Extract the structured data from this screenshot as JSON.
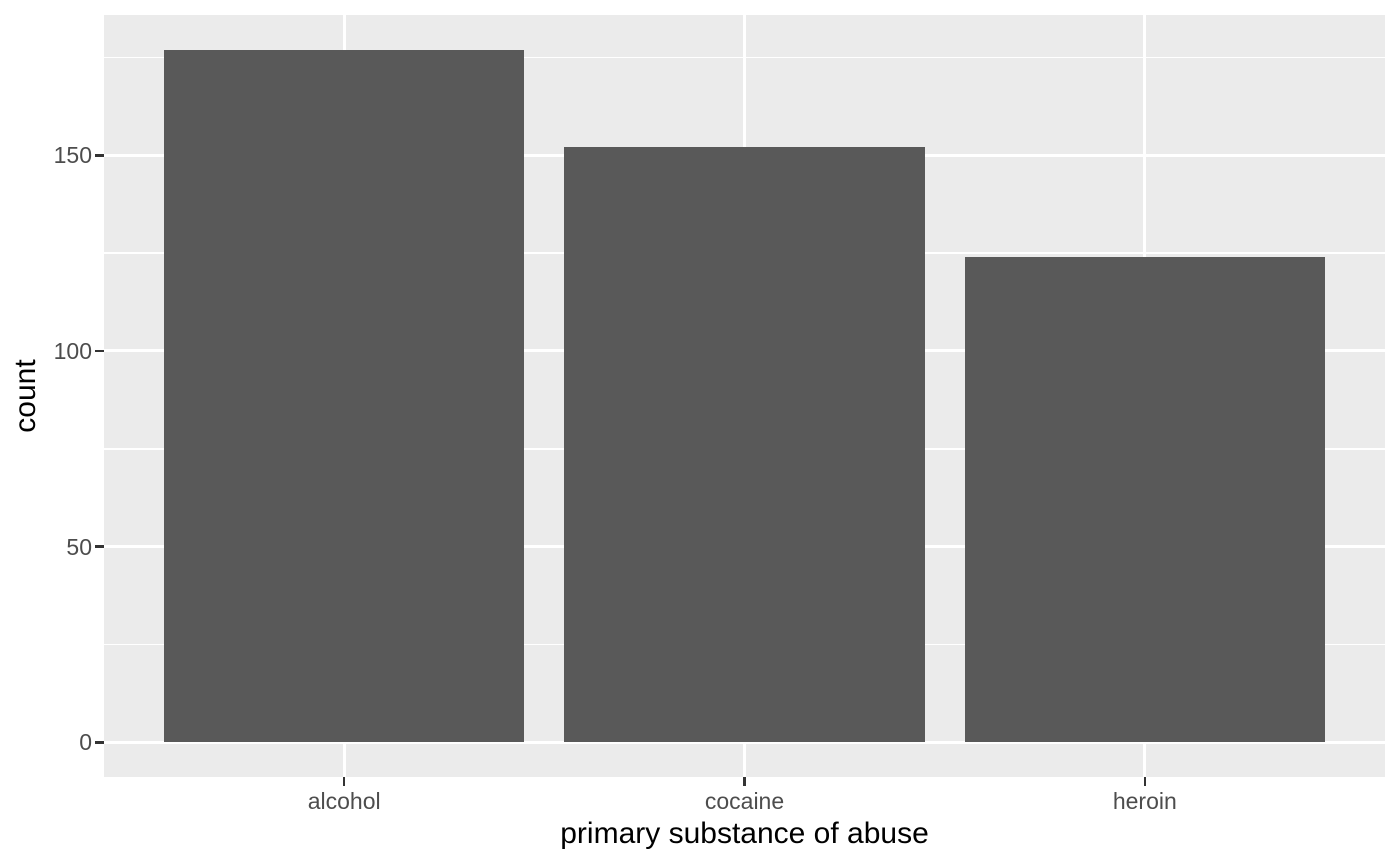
{
  "chart_data": {
    "type": "bar",
    "title": "",
    "categories": [
      "alcohol",
      "cocaine",
      "heroin"
    ],
    "values": [
      177,
      152,
      124
    ],
    "xlabel": "primary substance of abuse",
    "ylabel": "count",
    "y_major_ticks": [
      0,
      50,
      100,
      150
    ],
    "y_minor_ticks": [
      25,
      75,
      125,
      175
    ],
    "ylim": [
      -8.85,
      185.85
    ],
    "grid": "on",
    "legend": "none",
    "bar_width_fraction": 0.9,
    "discrete_expansion": 0.6,
    "theme": "ggplot2-grey",
    "colors": {
      "bar": "#595959",
      "panel_bg": "#EBEBEB",
      "grid": "#FFFFFF",
      "tick_label": "#4D4D4D",
      "axis_title": "#000000",
      "tick_mark": "#333333",
      "background": "#FFFFFF"
    }
  }
}
